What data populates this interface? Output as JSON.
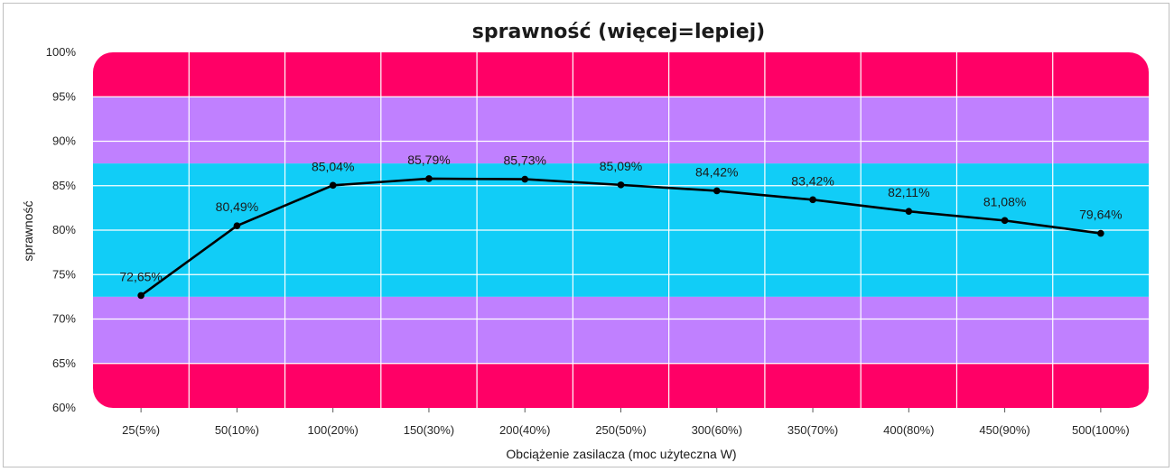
{
  "chart_data": {
    "type": "line",
    "title": "sprawność (więcej=lepiej)",
    "xlabel": "Obciążenie zasilacza (moc użyteczna W)",
    "ylabel": "sprawność",
    "categories": [
      "25(5%)",
      "50(10%)",
      "100(20%)",
      "150(30%)",
      "200(40%)",
      "250(50%)",
      "300(60%)",
      "350(70%)",
      "400(80%)",
      "450(90%)",
      "500(100%)"
    ],
    "series": [
      {
        "values": [
          72.65,
          80.49,
          85.04,
          85.79,
          85.73,
          85.09,
          84.42,
          83.42,
          82.11,
          81.08,
          79.64
        ],
        "labels": [
          "72,65%",
          "80,49%",
          "85,04%",
          "85,79%",
          "85,73%",
          "85,09%",
          "84,42%",
          "83,42%",
          "82,11%",
          "81,08%",
          "79,64%"
        ],
        "color": "#000000"
      }
    ],
    "ylim": [
      60,
      100
    ],
    "yticks": [
      {
        "value": 100,
        "label": "100%"
      },
      {
        "value": 95,
        "label": "95%"
      },
      {
        "value": 90,
        "label": "90%"
      },
      {
        "value": 85,
        "label": "85%"
      },
      {
        "value": 80,
        "label": "80%"
      },
      {
        "value": 75,
        "label": "75%"
      },
      {
        "value": 70,
        "label": "70%"
      },
      {
        "value": 65,
        "label": "65%"
      },
      {
        "value": 60,
        "label": "60%"
      }
    ],
    "grid": true,
    "legend": "none",
    "bands": [
      {
        "from": 95,
        "to": 100,
        "color": "#ff0066"
      },
      {
        "from": 87.5,
        "to": 95,
        "color": "#c080ff"
      },
      {
        "from": 72.5,
        "to": 87.5,
        "color": "#11cdf7"
      },
      {
        "from": 65,
        "to": 72.5,
        "color": "#c080ff"
      },
      {
        "from": 60,
        "to": 65,
        "color": "#ff0066"
      }
    ]
  }
}
